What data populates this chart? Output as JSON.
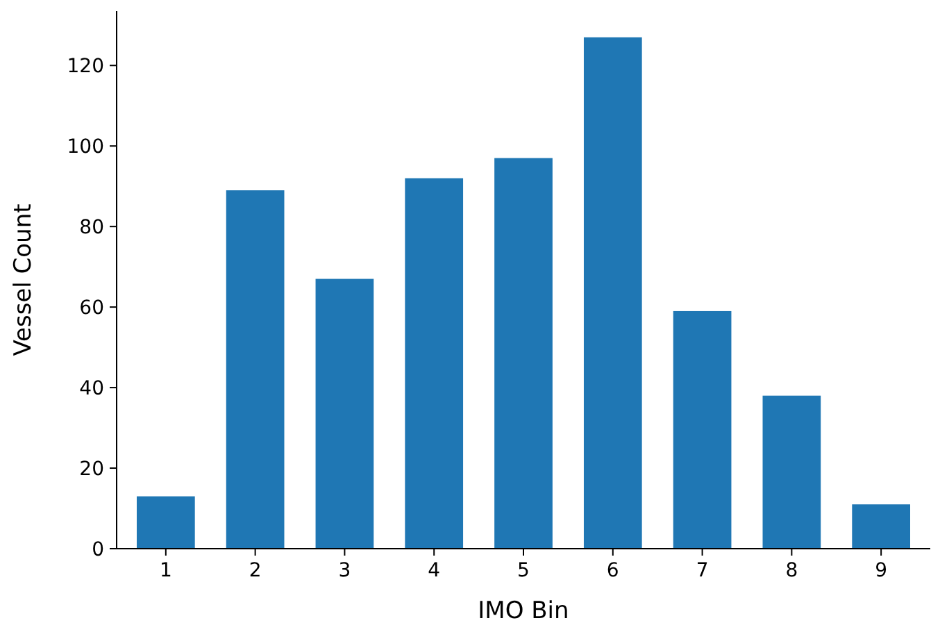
{
  "chart_data": {
    "type": "bar",
    "xlabel": "IMO Bin",
    "ylabel": "Vessel Count",
    "categories": [
      "1",
      "2",
      "3",
      "4",
      "5",
      "6",
      "7",
      "8",
      "9"
    ],
    "values": [
      13,
      89,
      67,
      92,
      97,
      127,
      59,
      38,
      11
    ],
    "color": "#1f77b4",
    "ylim": [
      0,
      133.5
    ],
    "yticks": [
      0,
      20,
      40,
      60,
      80,
      100,
      120
    ],
    "grid": false
  }
}
